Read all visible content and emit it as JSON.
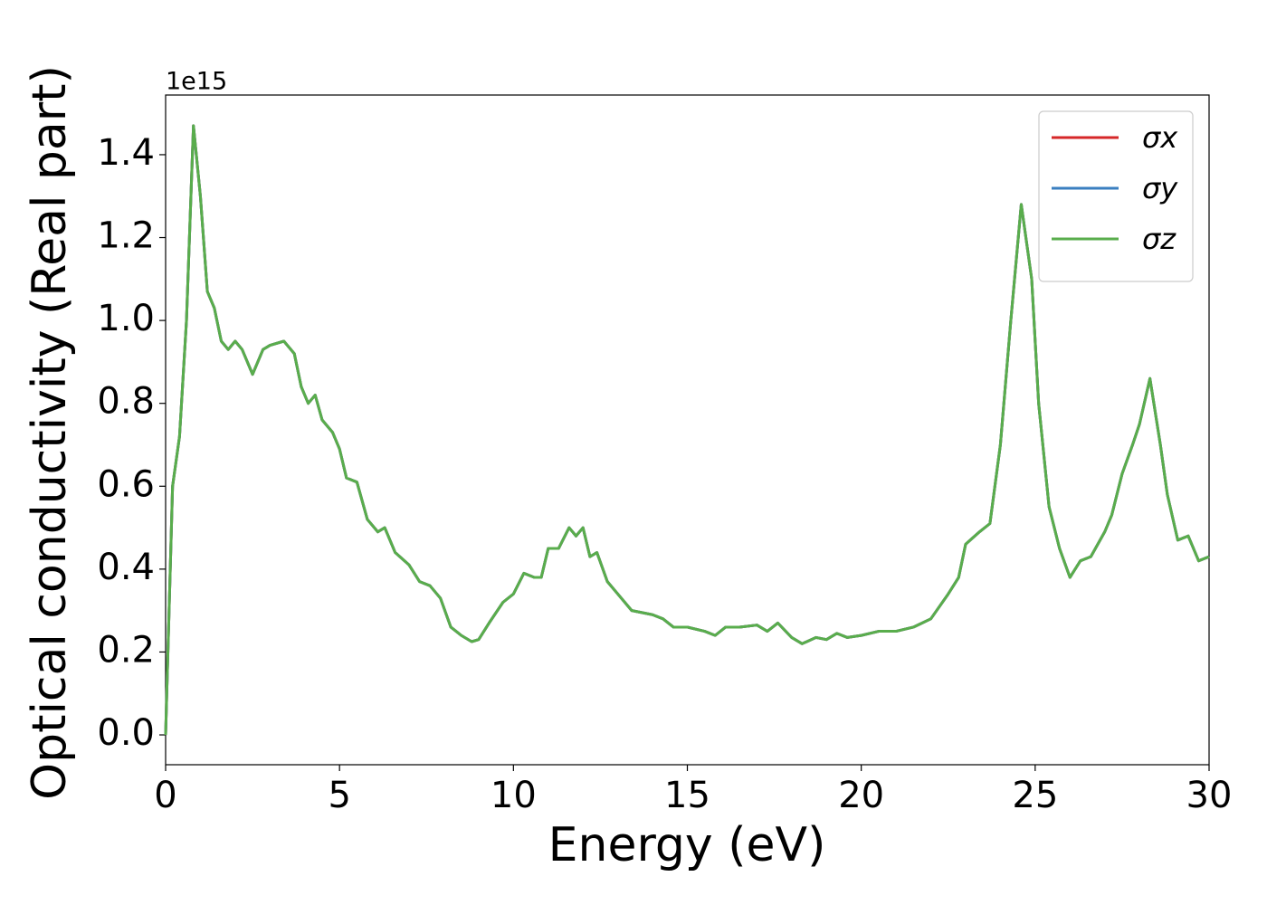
{
  "chart_data": {
    "type": "line",
    "x_label": "Energy (eV)",
    "y_label": "Optical conductivity (Real part)",
    "y_offset_label": "1e15",
    "xlim": [
      0,
      30
    ],
    "xticks": [
      0,
      5,
      10,
      15,
      20,
      25,
      30
    ],
    "ylim": [
      -0.072,
      1.544
    ],
    "yticks": [
      {
        "value": 0,
        "label": "0.0"
      },
      0.2,
      0.4,
      0.6,
      0.8,
      {
        "value": 1,
        "label": "1.0"
      },
      1.2,
      1.4
    ],
    "legend": "upper right",
    "grid": false,
    "x": [
      0,
      0.1,
      0.2,
      0.4,
      0.6,
      0.8,
      1.0,
      1.2,
      1.4,
      1.6,
      1.8,
      2.0,
      2.2,
      2.5,
      2.8,
      3.0,
      3.4,
      3.7,
      3.9,
      4.1,
      4.3,
      4.5,
      4.8,
      5.0,
      5.2,
      5.5,
      5.8,
      6.1,
      6.3,
      6.6,
      7.0,
      7.3,
      7.6,
      7.9,
      8.2,
      8.5,
      8.8,
      9.0,
      9.3,
      9.7,
      10.0,
      10.3,
      10.6,
      10.8,
      11.0,
      11.3,
      11.6,
      11.8,
      12.0,
      12.2,
      12.4,
      12.7,
      13.0,
      13.4,
      14.0,
      14.3,
      14.6,
      15.0,
      15.5,
      15.8,
      16.1,
      16.5,
      17.0,
      17.3,
      17.6,
      18.0,
      18.3,
      18.7,
      19.0,
      19.3,
      19.6,
      20.0,
      20.5,
      21.0,
      21.5,
      22.0,
      22.5,
      22.8,
      23.0,
      23.4,
      23.7,
      24.0,
      24.3,
      24.6,
      24.9,
      25.1,
      25.4,
      25.7,
      26.0,
      26.3,
      26.6,
      27.0,
      27.2,
      27.5,
      27.8,
      28.0,
      28.3,
      28.6,
      28.8,
      29.1,
      29.4,
      29.7,
      30.0
    ],
    "series": [
      {
        "name": "σx",
        "color": "#d62728",
        "values": [
          0,
          0.3,
          0.6,
          0.72,
          1.0,
          1.47,
          1.3,
          1.07,
          1.03,
          0.95,
          0.93,
          0.95,
          0.93,
          0.87,
          0.93,
          0.94,
          0.95,
          0.92,
          0.84,
          0.8,
          0.82,
          0.76,
          0.73,
          0.69,
          0.62,
          0.61,
          0.52,
          0.49,
          0.5,
          0.44,
          0.41,
          0.37,
          0.36,
          0.33,
          0.26,
          0.24,
          0.225,
          0.23,
          0.27,
          0.32,
          0.34,
          0.39,
          0.38,
          0.38,
          0.45,
          0.45,
          0.5,
          0.48,
          0.5,
          0.43,
          0.44,
          0.37,
          0.34,
          0.3,
          0.29,
          0.28,
          0.26,
          0.26,
          0.25,
          0.24,
          0.26,
          0.26,
          0.265,
          0.25,
          0.27,
          0.235,
          0.22,
          0.235,
          0.23,
          0.245,
          0.235,
          0.24,
          0.25,
          0.25,
          0.26,
          0.28,
          0.34,
          0.38,
          0.46,
          0.49,
          0.51,
          0.7,
          1.0,
          1.28,
          1.1,
          0.8,
          0.55,
          0.45,
          0.38,
          0.42,
          0.43,
          0.49,
          0.53,
          0.63,
          0.7,
          0.75,
          0.86,
          0.7,
          0.58,
          0.47,
          0.48,
          0.42,
          0.43
        ]
      },
      {
        "name": "σy",
        "color": "#3a7fc0",
        "values": [
          0,
          0.3,
          0.6,
          0.72,
          1.0,
          1.47,
          1.3,
          1.07,
          1.03,
          0.95,
          0.93,
          0.95,
          0.93,
          0.87,
          0.93,
          0.94,
          0.95,
          0.92,
          0.84,
          0.8,
          0.82,
          0.76,
          0.73,
          0.69,
          0.62,
          0.61,
          0.52,
          0.49,
          0.5,
          0.44,
          0.41,
          0.37,
          0.36,
          0.33,
          0.26,
          0.24,
          0.225,
          0.23,
          0.27,
          0.32,
          0.34,
          0.39,
          0.38,
          0.38,
          0.45,
          0.45,
          0.5,
          0.48,
          0.5,
          0.43,
          0.44,
          0.37,
          0.34,
          0.3,
          0.29,
          0.28,
          0.26,
          0.26,
          0.25,
          0.24,
          0.26,
          0.26,
          0.265,
          0.25,
          0.27,
          0.235,
          0.22,
          0.235,
          0.23,
          0.245,
          0.235,
          0.24,
          0.25,
          0.25,
          0.26,
          0.28,
          0.34,
          0.38,
          0.46,
          0.49,
          0.51,
          0.7,
          1.0,
          1.28,
          1.1,
          0.8,
          0.55,
          0.45,
          0.38,
          0.42,
          0.43,
          0.49,
          0.53,
          0.63,
          0.7,
          0.75,
          0.86,
          0.7,
          0.58,
          0.47,
          0.48,
          0.42,
          0.43
        ]
      },
      {
        "name": "σz",
        "color": "#59ad4c",
        "values": [
          0,
          0.3,
          0.6,
          0.72,
          1.0,
          1.47,
          1.3,
          1.07,
          1.03,
          0.95,
          0.93,
          0.95,
          0.93,
          0.87,
          0.93,
          0.94,
          0.95,
          0.92,
          0.84,
          0.8,
          0.82,
          0.76,
          0.73,
          0.69,
          0.62,
          0.61,
          0.52,
          0.49,
          0.5,
          0.44,
          0.41,
          0.37,
          0.36,
          0.33,
          0.26,
          0.24,
          0.225,
          0.23,
          0.27,
          0.32,
          0.34,
          0.39,
          0.38,
          0.38,
          0.45,
          0.45,
          0.5,
          0.48,
          0.5,
          0.43,
          0.44,
          0.37,
          0.34,
          0.3,
          0.29,
          0.28,
          0.26,
          0.26,
          0.25,
          0.24,
          0.26,
          0.26,
          0.265,
          0.25,
          0.27,
          0.235,
          0.22,
          0.235,
          0.23,
          0.245,
          0.235,
          0.24,
          0.25,
          0.25,
          0.26,
          0.28,
          0.34,
          0.38,
          0.46,
          0.49,
          0.51,
          0.7,
          1.0,
          1.28,
          1.1,
          0.8,
          0.55,
          0.45,
          0.38,
          0.42,
          0.43,
          0.49,
          0.53,
          0.63,
          0.7,
          0.75,
          0.86,
          0.7,
          0.58,
          0.47,
          0.48,
          0.42,
          0.43
        ]
      }
    ]
  }
}
